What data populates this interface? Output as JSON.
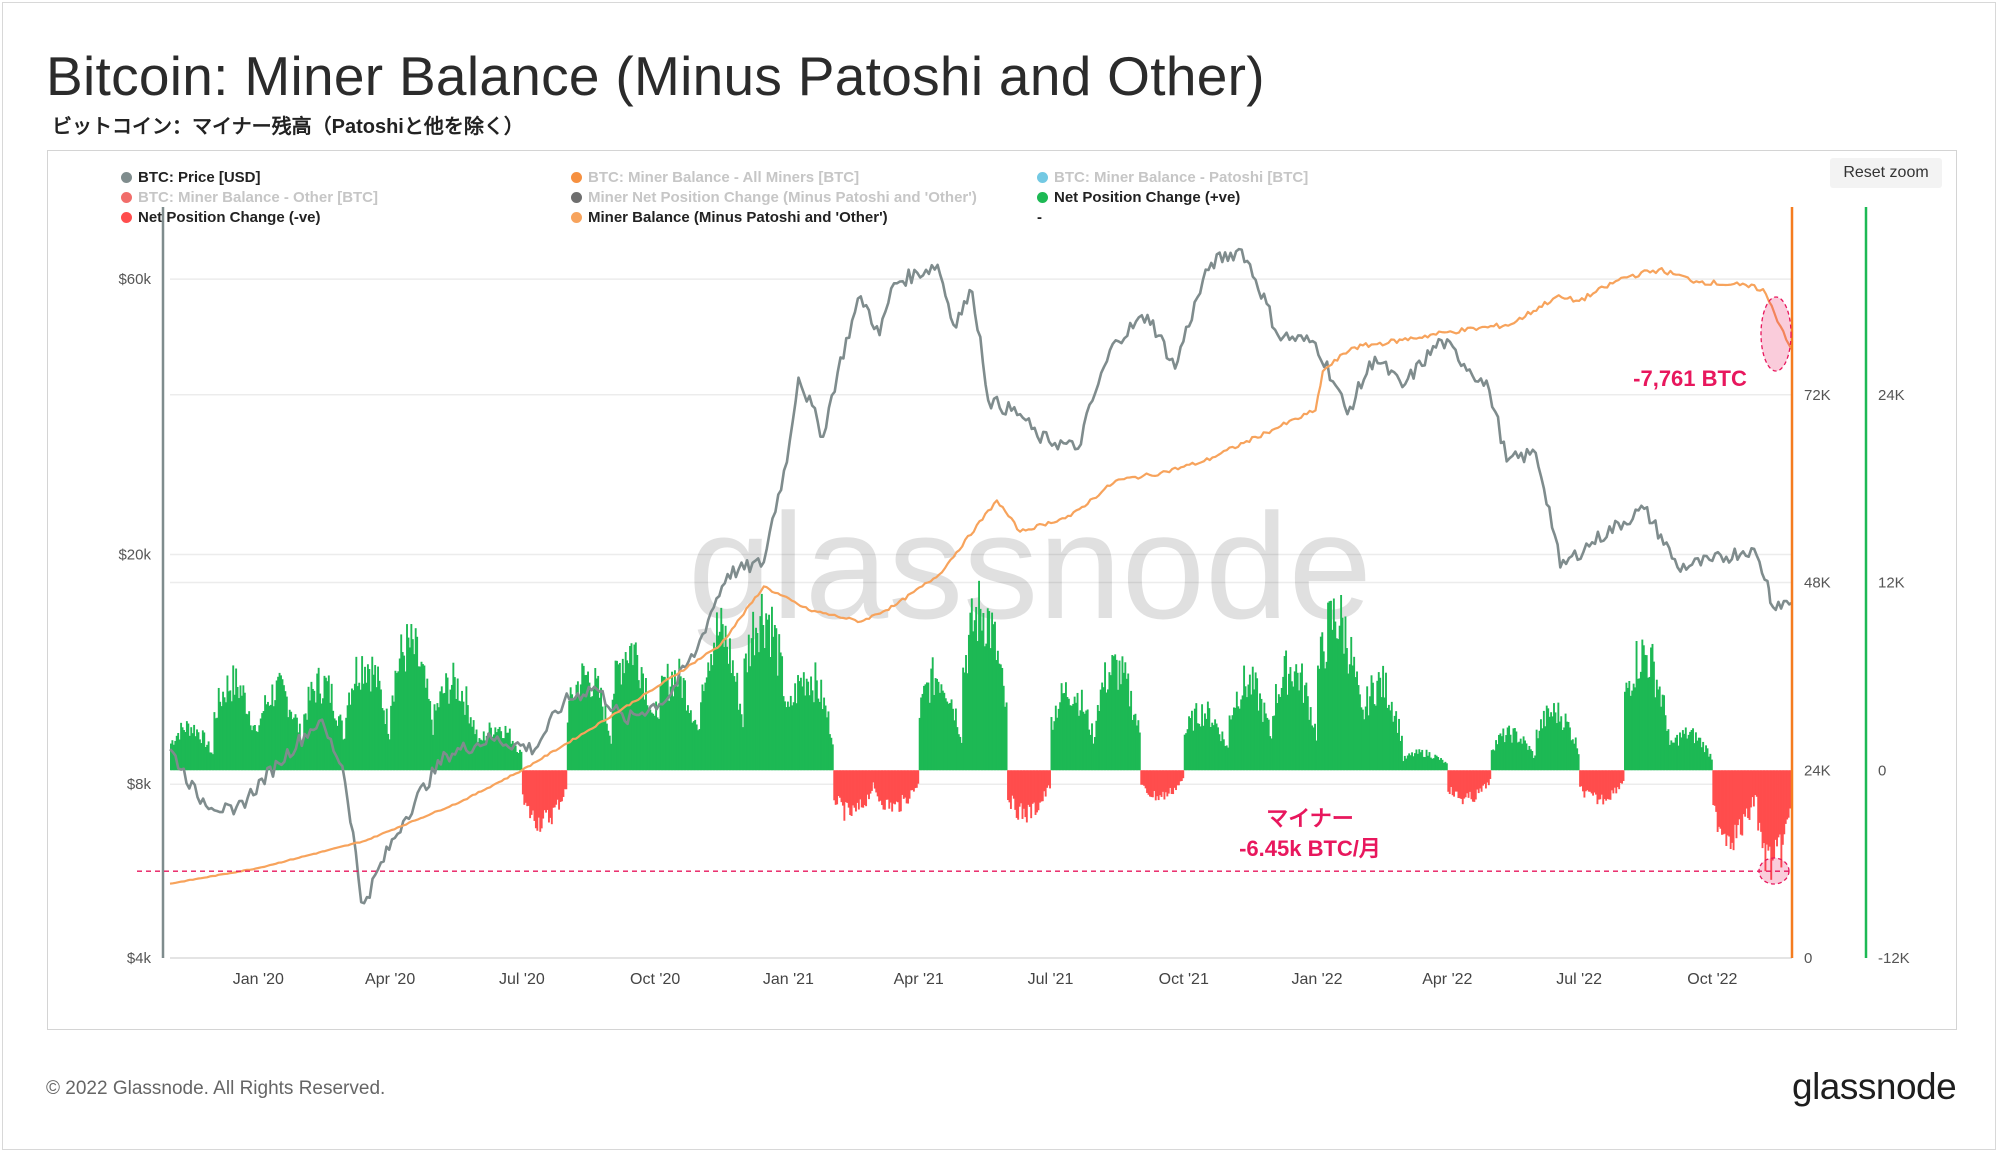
{
  "title": "Bitcoin: Miner Balance (Minus Patoshi and Other)",
  "subtitle": "ビットコイン：マイナー残高（Patoshiと他を除く）",
  "reset_zoom_label": "Reset zoom",
  "watermark": "glassnode",
  "footer": {
    "copyright": "© 2022 Glassnode. All Rights Reserved.",
    "logo": "glassnode"
  },
  "legend": [
    {
      "label": "BTC: Price [USD]",
      "color": "#7f8c8d",
      "active": true
    },
    {
      "label": "BTC: Miner Balance - All Miners [BTC]",
      "color": "#f57c1f",
      "active": false
    },
    {
      "label": "BTC: Miner Balance - Patoshi [BTC]",
      "color": "#5bc0de",
      "active": false
    },
    {
      "label": "BTC: Miner Balance - Other [BTC]",
      "color": "#ef5350",
      "active": false
    },
    {
      "label": "Miner Net Position Change (Minus Patoshi and 'Other')",
      "color": "#555555",
      "active": false
    },
    {
      "label": "Net Position Change (+ve)",
      "color": "#1db954",
      "active": true
    },
    {
      "label": "Net Position Change (-ve)",
      "color": "#ff4d4d",
      "active": true
    },
    {
      "label": "Miner Balance (Minus Patoshi and 'Other')",
      "color": "#f7a35c",
      "active": true
    },
    {
      "label": "-",
      "color": "",
      "active": true
    }
  ],
  "annotations": {
    "balance_drop": "-7,761 BTC",
    "miner_label": "マイナー",
    "miner_rate": "-6.45k BTC/月",
    "color": "#e8175d"
  },
  "chart_data": {
    "type": "line",
    "x_axis": {
      "ticks": [
        "Jan '20",
        "Apr '20",
        "Jul '20",
        "Oct '20",
        "Jan '21",
        "Apr '21",
        "Jul '21",
        "Oct '21",
        "Jan '22",
        "Apr '22",
        "Jul '22",
        "Oct '22"
      ],
      "range": [
        "2019-11-01",
        "2022-11-25"
      ]
    },
    "y_axis_price": {
      "ticks": [
        "$60k",
        "$20k",
        "$8k",
        "$4k"
      ],
      "scale": "log",
      "range": [
        4000,
        80000
      ]
    },
    "y_axis_balance": {
      "ticks": [
        "72K",
        "48K",
        "24K",
        "0"
      ],
      "range": [
        0,
        96000
      ]
    },
    "y_axis_netchange": {
      "ticks": [
        "24K",
        "12K",
        "0",
        "-12K"
      ],
      "range": [
        -12000,
        36000
      ]
    },
    "grid": true,
    "series": [
      {
        "name": "BTC: Price [USD]",
        "color": "#7f8c8d",
        "points": [
          [
            "2019-11-01",
            9200
          ],
          [
            "2019-11-20",
            7600
          ],
          [
            "2019-12-15",
            7100
          ],
          [
            "2020-01-15",
            8700
          ],
          [
            "2020-02-12",
            10300
          ],
          [
            "2020-02-28",
            8600
          ],
          [
            "2020-03-12",
            5000
          ],
          [
            "2020-03-16",
            5100
          ],
          [
            "2020-04-10",
            6900
          ],
          [
            "2020-05-10",
            9000
          ],
          [
            "2020-06-10",
            9600
          ],
          [
            "2020-07-10",
            9200
          ],
          [
            "2020-07-30",
            11100
          ],
          [
            "2020-08-20",
            11800
          ],
          [
            "2020-09-10",
            10300
          ],
          [
            "2020-10-10",
            11300
          ],
          [
            "2020-10-30",
            13700
          ],
          [
            "2020-11-20",
            18500
          ],
          [
            "2020-12-15",
            19400
          ],
          [
            "2020-12-31",
            28900
          ],
          [
            "2021-01-08",
            40500
          ],
          [
            "2021-01-25",
            32000
          ],
          [
            "2021-02-20",
            56000
          ],
          [
            "2021-03-05",
            48000
          ],
          [
            "2021-03-15",
            59000
          ],
          [
            "2021-04-14",
            63500
          ],
          [
            "2021-04-25",
            50000
          ],
          [
            "2021-05-08",
            57000
          ],
          [
            "2021-05-19",
            37000
          ],
          [
            "2021-06-10",
            35000
          ],
          [
            "2021-06-22",
            32000
          ],
          [
            "2021-07-20",
            30500
          ],
          [
            "2021-08-15",
            47000
          ],
          [
            "2021-09-06",
            52000
          ],
          [
            "2021-09-25",
            42000
          ],
          [
            "2021-10-20",
            64000
          ],
          [
            "2021-11-10",
            67500
          ],
          [
            "2021-12-05",
            48000
          ],
          [
            "2021-12-31",
            46500
          ],
          [
            "2022-01-22",
            35000
          ],
          [
            "2022-02-10",
            44000
          ],
          [
            "2022-03-01",
            39000
          ],
          [
            "2022-03-28",
            47000
          ],
          [
            "2022-04-30",
            38500
          ],
          [
            "2022-05-12",
            29000
          ],
          [
            "2022-06-01",
            30000
          ],
          [
            "2022-06-18",
            19000
          ],
          [
            "2022-07-10",
            21000
          ],
          [
            "2022-08-15",
            24000
          ],
          [
            "2022-09-07",
            19000
          ],
          [
            "2022-10-01",
            19500
          ],
          [
            "2022-10-28",
            20500
          ],
          [
            "2022-11-08",
            18000
          ],
          [
            "2022-11-10",
            16500
          ],
          [
            "2022-11-25",
            16500
          ]
        ]
      },
      {
        "name": "Miner Balance (Minus Patoshi and 'Other')",
        "color": "#f7a35c",
        "points": [
          [
            "2019-11-01",
            9500
          ],
          [
            "2020-01-01",
            11500
          ],
          [
            "2020-03-15",
            15000
          ],
          [
            "2020-05-20",
            20000
          ],
          [
            "2020-07-01",
            24000
          ],
          [
            "2020-08-15",
            29000
          ],
          [
            "2020-10-01",
            34500
          ],
          [
            "2020-11-15",
            40000
          ],
          [
            "2020-12-15",
            47500
          ],
          [
            "2021-01-15",
            44500
          ],
          [
            "2021-02-20",
            43000
          ],
          [
            "2021-03-15",
            45000
          ],
          [
            "2021-04-15",
            49000
          ],
          [
            "2021-05-25",
            58500
          ],
          [
            "2021-06-10",
            54500
          ],
          [
            "2021-07-15",
            56500
          ],
          [
            "2021-08-15",
            61000
          ],
          [
            "2021-09-15",
            62000
          ],
          [
            "2021-10-15",
            63500
          ],
          [
            "2021-12-01",
            67500
          ],
          [
            "2021-12-31",
            70000
          ],
          [
            "2022-01-05",
            75000
          ],
          [
            "2022-01-25",
            78000
          ],
          [
            "2022-03-01",
            79000
          ],
          [
            "2022-04-01",
            80000
          ],
          [
            "2022-05-15",
            81000
          ],
          [
            "2022-06-15",
            84500
          ],
          [
            "2022-07-01",
            84000
          ],
          [
            "2022-08-01",
            87000
          ],
          [
            "2022-08-25",
            88000
          ],
          [
            "2022-09-20",
            86500
          ],
          [
            "2022-10-20",
            86000
          ],
          [
            "2022-11-05",
            85500
          ],
          [
            "2022-11-25",
            77739
          ]
        ]
      }
    ],
    "net_position_change": [
      [
        "2019-11",
        3000
      ],
      [
        "2019-12",
        6000
      ],
      [
        "2020-01",
        5500
      ],
      [
        "2020-02",
        6000
      ],
      [
        "2020-03",
        7500
      ],
      [
        "2020-04",
        8500
      ],
      [
        "2020-05",
        6000
      ],
      [
        "2020-06",
        3000
      ],
      [
        "2020-07",
        -3500
      ],
      [
        "2020-08",
        6500
      ],
      [
        "2020-09",
        8500
      ],
      [
        "2020-10",
        6500
      ],
      [
        "2020-11",
        9500
      ],
      [
        "2020-12",
        11000
      ],
      [
        "2021-01",
        6500
      ],
      [
        "2021-02",
        -3000
      ],
      [
        "2021-03",
        -2500
      ],
      [
        "2021-04",
        6500
      ],
      [
        "2021-05",
        11000
      ],
      [
        "2021-06",
        -3000
      ],
      [
        "2021-07",
        5500
      ],
      [
        "2021-08",
        7000
      ],
      [
        "2021-09",
        -1800
      ],
      [
        "2021-10",
        4000
      ],
      [
        "2021-11",
        6000
      ],
      [
        "2021-12",
        7000
      ],
      [
        "2022-01",
        10500
      ],
      [
        "2022-02",
        6000
      ],
      [
        "2022-03",
        1200
      ],
      [
        "2022-04",
        -2000
      ],
      [
        "2022-05",
        2500
      ],
      [
        "2022-06",
        4000
      ],
      [
        "2022-07",
        -2000
      ],
      [
        "2022-08",
        8000
      ],
      [
        "2022-09",
        2500
      ],
      [
        "2022-10",
        -4500
      ],
      [
        "2022-11",
        -6450
      ]
    ],
    "reference_line": {
      "value": -6450,
      "style": "dashed"
    }
  }
}
